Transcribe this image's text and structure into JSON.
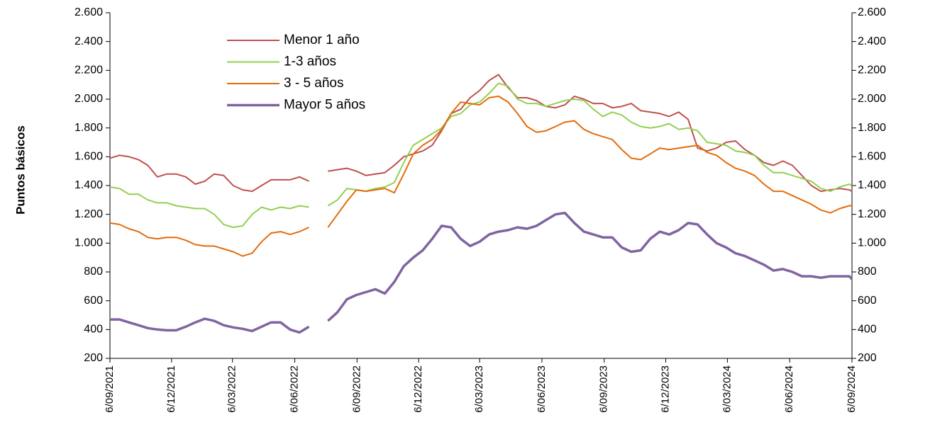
{
  "chart_data": {
    "type": "line",
    "y_label": "Puntos básicos",
    "x": [
      "2021-09-06",
      "2021-09-20",
      "2021-10-04",
      "2021-10-18",
      "2021-11-01",
      "2021-11-15",
      "2021-11-29",
      "2021-12-13",
      "2021-12-27",
      "2022-01-10",
      "2022-01-24",
      "2022-02-07",
      "2022-02-21",
      "2022-03-07",
      "2022-03-21",
      "2022-04-04",
      "2022-04-18",
      "2022-05-02",
      "2022-05-16",
      "2022-05-30",
      "2022-06-13",
      "2022-06-27",
      "2022-07-11",
      "2022-07-25",
      "2022-08-08",
      "2022-08-22",
      "2022-09-05",
      "2022-09-19",
      "2022-10-03",
      "2022-10-17",
      "2022-10-31",
      "2022-11-14",
      "2022-11-28",
      "2022-12-12",
      "2022-12-26",
      "2023-01-09",
      "2023-01-23",
      "2023-02-06",
      "2023-02-20",
      "2023-03-06",
      "2023-03-20",
      "2023-04-03",
      "2023-04-17",
      "2023-05-01",
      "2023-05-15",
      "2023-05-29",
      "2023-06-12",
      "2023-06-26",
      "2023-07-10",
      "2023-07-24",
      "2023-08-07",
      "2023-08-21",
      "2023-09-04",
      "2023-09-18",
      "2023-10-02",
      "2023-10-16",
      "2023-10-30",
      "2023-11-13",
      "2023-11-27",
      "2023-12-11",
      "2023-12-25",
      "2024-01-08",
      "2024-01-22",
      "2024-02-05",
      "2024-02-19",
      "2024-03-04",
      "2024-03-18",
      "2024-04-01",
      "2024-04-15",
      "2024-04-29",
      "2024-05-13",
      "2024-05-27",
      "2024-06-10",
      "2024-06-24",
      "2024-07-08",
      "2024-07-22",
      "2024-08-05",
      "2024-08-19",
      "2024-09-02",
      "2024-09-06"
    ],
    "series": [
      {
        "name": "Menor 1 año",
        "color": "#c0504d",
        "width": 2,
        "values": [
          1590,
          1610,
          1600,
          1580,
          1540,
          1460,
          1480,
          1480,
          1460,
          1410,
          1430,
          1480,
          1470,
          1400,
          1370,
          1360,
          1400,
          1440,
          1440,
          1440,
          1460,
          1430,
          null,
          1500,
          1510,
          1520,
          1500,
          1470,
          1480,
          1490,
          1540,
          1600,
          1620,
          1640,
          1680,
          1780,
          1900,
          1930,
          2010,
          2060,
          2130,
          2170,
          2080,
          2010,
          2010,
          1990,
          1950,
          1940,
          1960,
          2020,
          2000,
          1970,
          1970,
          1940,
          1950,
          1970,
          1920,
          1910,
          1900,
          1880,
          1910,
          1860,
          1660,
          1640,
          1660,
          1700,
          1710,
          1650,
          1610,
          1560,
          1540,
          1570,
          1540,
          1470,
          1400,
          1360,
          1370,
          1380,
          1370,
          1360
        ]
      },
      {
        "name": "1-3 años",
        "color": "#92d050",
        "width": 2,
        "values": [
          1390,
          1380,
          1340,
          1340,
          1300,
          1280,
          1280,
          1260,
          1250,
          1240,
          1240,
          1200,
          1130,
          1110,
          1120,
          1200,
          1250,
          1230,
          1250,
          1240,
          1260,
          1250,
          null,
          1260,
          1300,
          1380,
          1370,
          1360,
          1380,
          1390,
          1420,
          1560,
          1680,
          1720,
          1760,
          1800,
          1880,
          1900,
          1960,
          1980,
          2040,
          2110,
          2090,
          2000,
          1970,
          1970,
          1950,
          1970,
          1990,
          2000,
          1990,
          1930,
          1880,
          1910,
          1890,
          1840,
          1810,
          1800,
          1810,
          1830,
          1790,
          1800,
          1780,
          1700,
          1690,
          1680,
          1640,
          1630,
          1610,
          1540,
          1490,
          1490,
          1470,
          1450,
          1430,
          1380,
          1360,
          1390,
          1410,
          1400
        ]
      },
      {
        "name": "3 - 5 años",
        "color": "#e46c0a",
        "width": 2,
        "values": [
          1140,
          1130,
          1100,
          1080,
          1040,
          1030,
          1040,
          1040,
          1020,
          990,
          980,
          980,
          960,
          940,
          910,
          930,
          1010,
          1070,
          1080,
          1060,
          1080,
          1110,
          null,
          1110,
          1200,
          1290,
          1370,
          1360,
          1370,
          1380,
          1350,
          1480,
          1620,
          1680,
          1720,
          1790,
          1900,
          1980,
          1970,
          1960,
          2010,
          2020,
          1980,
          1900,
          1810,
          1770,
          1780,
          1810,
          1840,
          1850,
          1790,
          1760,
          1740,
          1720,
          1650,
          1590,
          1580,
          1620,
          1660,
          1650,
          1660,
          1670,
          1680,
          1630,
          1610,
          1560,
          1520,
          1500,
          1470,
          1410,
          1360,
          1360,
          1330,
          1300,
          1270,
          1230,
          1210,
          1240,
          1260,
          1260
        ]
      },
      {
        "name": "Mayor 5 años",
        "color": "#8064a2",
        "width": 3.5,
        "values": [
          470,
          470,
          450,
          430,
          410,
          400,
          395,
          395,
          420,
          450,
          475,
          460,
          430,
          415,
          405,
          390,
          420,
          450,
          450,
          400,
          380,
          420,
          null,
          460,
          520,
          610,
          640,
          660,
          680,
          650,
          730,
          840,
          900,
          950,
          1030,
          1120,
          1110,
          1030,
          980,
          1010,
          1060,
          1080,
          1090,
          1110,
          1100,
          1120,
          1160,
          1200,
          1210,
          1140,
          1080,
          1060,
          1040,
          1040,
          970,
          940,
          950,
          1030,
          1080,
          1060,
          1090,
          1140,
          1130,
          1060,
          1000,
          970,
          930,
          910,
          880,
          850,
          810,
          820,
          800,
          770,
          770,
          760,
          770,
          770,
          770,
          750
        ]
      }
    ],
    "xlim": [
      "2021-09-06",
      "2024-09-06"
    ],
    "xticks": [
      {
        "value": "2021-09-06",
        "label": "6/09/2021"
      },
      {
        "value": "2021-12-06",
        "label": "6/12/2021"
      },
      {
        "value": "2022-03-06",
        "label": "6/03/2022"
      },
      {
        "value": "2022-06-06",
        "label": "6/06/2022"
      },
      {
        "value": "2022-09-06",
        "label": "6/09/2022"
      },
      {
        "value": "2022-12-06",
        "label": "6/12/2022"
      },
      {
        "value": "2023-03-06",
        "label": "6/03/2023"
      },
      {
        "value": "2023-06-06",
        "label": "6/06/2023"
      },
      {
        "value": "2023-09-06",
        "label": "6/09/2023"
      },
      {
        "value": "2023-12-06",
        "label": "6/12/2023"
      },
      {
        "value": "2024-03-06",
        "label": "6/03/2024"
      },
      {
        "value": "2024-06-06",
        "label": "6/06/2024"
      },
      {
        "value": "2024-09-06",
        "label": "6/09/2024"
      }
    ],
    "ylim": [
      200,
      2600
    ],
    "yticks": [
      200,
      400,
      600,
      800,
      {
        "value": 1000,
        "label": "1.000"
      },
      {
        "value": 1200,
        "label": "1.200"
      },
      {
        "value": 1400,
        "label": "1.400"
      },
      {
        "value": 1600,
        "label": "1.600"
      },
      {
        "value": 1800,
        "label": "1.800"
      },
      {
        "value": 2000,
        "label": "2.000"
      },
      {
        "value": 2200,
        "label": "2.200"
      },
      {
        "value": 2400,
        "label": "2.400"
      },
      {
        "value": 2600,
        "label": "2.600"
      }
    ],
    "y2lim": [
      200,
      2600
    ],
    "y2ticks": [
      200,
      400,
      600,
      800,
      {
        "value": 1000,
        "label": "1.000"
      },
      {
        "value": 1200,
        "label": "1.200"
      },
      {
        "value": 1400,
        "label": "1.400"
      },
      {
        "value": 1600,
        "label": "1.600"
      },
      {
        "value": 1800,
        "label": "1.800"
      },
      {
        "value": 2000,
        "label": "2.000"
      },
      {
        "value": 2200,
        "label": "2.200"
      },
      {
        "value": 2400,
        "label": "2.400"
      },
      {
        "value": 2600,
        "label": "2.600"
      }
    ],
    "grid": false,
    "legend": "upper left"
  }
}
